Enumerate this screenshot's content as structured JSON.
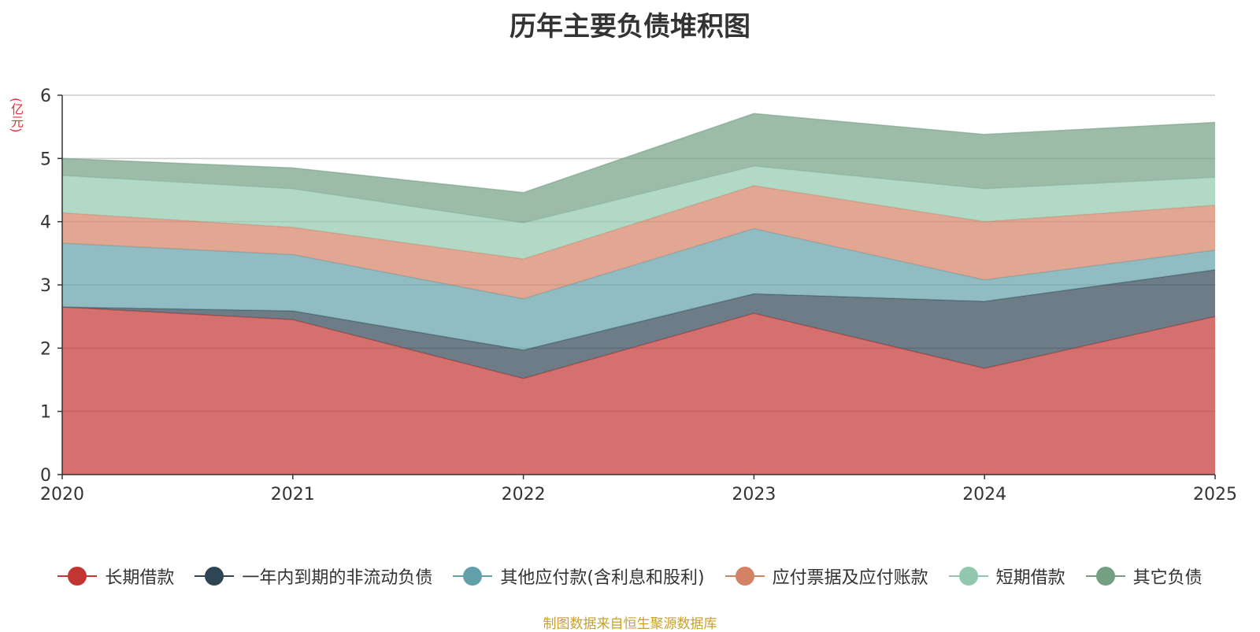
{
  "chart_data": {
    "type": "area",
    "stacked": true,
    "title": "历年主要负债堆积图",
    "unit": "(亿元)",
    "categories": [
      "2020",
      "2021",
      "2022",
      "2023",
      "2024",
      "2025"
    ],
    "ylim": [
      0,
      6
    ],
    "yticks": [
      "0",
      "1",
      "2",
      "3",
      "4",
      "5",
      "6"
    ],
    "grid": true,
    "legend_position": "bottom",
    "series": [
      {
        "name": "长期借款",
        "color": "#c23531",
        "values": [
          2.65,
          2.45,
          1.52,
          2.55,
          1.68,
          2.5
        ]
      },
      {
        "name": "一年内到期的非流动负债",
        "color": "#2f4554",
        "values": [
          0.0,
          0.14,
          0.45,
          0.31,
          1.06,
          0.74
        ]
      },
      {
        "name": "其他应付款(含利息和股利)",
        "color": "#61a0a8",
        "values": [
          1.01,
          0.89,
          0.81,
          1.03,
          0.34,
          0.31
        ]
      },
      {
        "name": "应付票据及应付账款",
        "color": "#d48265",
        "values": [
          0.48,
          0.43,
          0.63,
          0.68,
          0.92,
          0.71
        ]
      },
      {
        "name": "短期借款",
        "color": "#91c7ae",
        "values": [
          0.59,
          0.61,
          0.57,
          0.31,
          0.52,
          0.44
        ]
      },
      {
        "name": "其它负债",
        "color": "#749f83",
        "values": [
          0.27,
          0.33,
          0.48,
          0.83,
          0.86,
          0.87
        ]
      }
    ]
  },
  "source_note": "制图数据来自恒生聚源数据库"
}
